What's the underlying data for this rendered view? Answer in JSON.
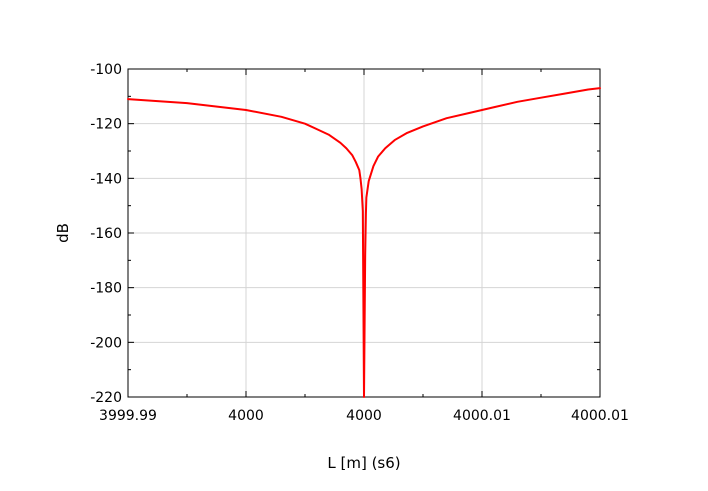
{
  "chart_data": {
    "type": "line",
    "title": "",
    "xlabel": "L [m] (s6)",
    "ylabel": "dB",
    "xlim": [
      3999.99,
      4000.01
    ],
    "ylim": [
      -220,
      -100
    ],
    "x_tick_labels": [
      "3999.99",
      "4000",
      "4000",
      "4000.01",
      "4000.01"
    ],
    "y_ticks": [
      -100,
      -120,
      -140,
      -160,
      -180,
      -200,
      -220
    ],
    "grid": true,
    "legend": "none",
    "series": [
      {
        "color": "#ff0000",
        "x": [
          3999.99,
          3999.9925,
          3999.995,
          3999.9965,
          3999.9975,
          3999.998,
          3999.9985,
          3999.99875,
          3999.999,
          3999.99925,
          3999.9995,
          3999.99965,
          3999.9998,
          3999.99985,
          3999.9999,
          3999.99995,
          4000.0,
          4000.00005,
          4000.00008,
          4000.0001,
          4000.0002,
          4000.0004,
          4000.0006,
          4000.0009,
          4000.0013,
          4000.0018,
          4000.0025,
          4000.0035,
          4000.0045,
          4000.0055,
          4000.0065,
          4000.0075,
          4000.0085,
          4000.0095,
          4000.01
        ],
        "y": [
          -111,
          -112.5,
          -115,
          -117.5,
          -120,
          -122,
          -124,
          -125.5,
          -127,
          -129,
          -131.5,
          -134,
          -137,
          -140,
          -144,
          -152,
          -220,
          -168,
          -153,
          -147,
          -141,
          -135.5,
          -132,
          -129,
          -126,
          -123.5,
          -121,
          -118,
          -116,
          -114,
          -112,
          -110.5,
          -109,
          -107.5,
          -107
        ]
      }
    ]
  }
}
